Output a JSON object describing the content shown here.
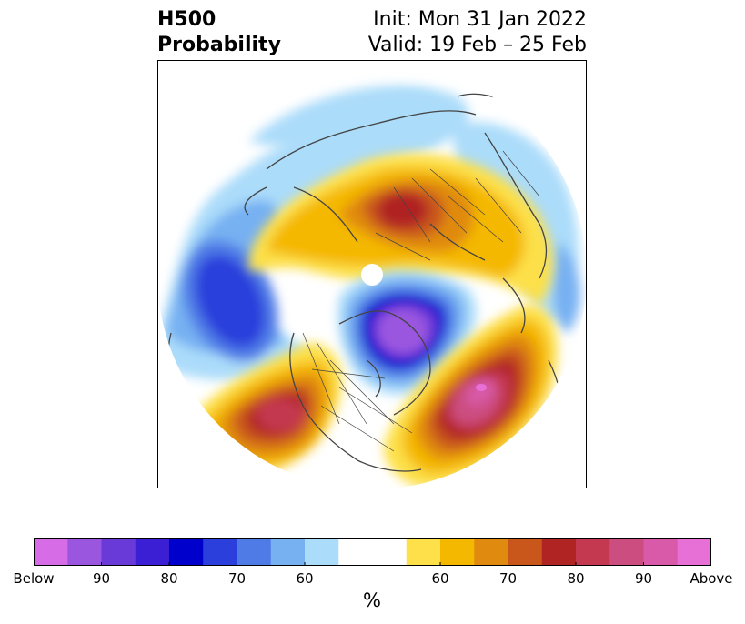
{
  "title": {
    "left_line1": "H500",
    "left_line2": "Probability",
    "right_line1": "Init: Mon 31 Jan 2022",
    "right_line2": "Valid: 19 Feb – 25 Feb"
  },
  "colorbar": {
    "unit": "%",
    "colors": [
      "#d66de6",
      "#9b56e0",
      "#6a3ad8",
      "#3a1fd4",
      "#0000cd",
      "#2a3fdc",
      "#4f7be6",
      "#77b1f2",
      "#abdcfa",
      "#ffffff",
      "#ffffff",
      "#fde04a",
      "#f4b800",
      "#e08a10",
      "#c9561a",
      "#b02424",
      "#c43850",
      "#cc4e80",
      "#d85aa8",
      "#e670d6"
    ],
    "ticks": [
      {
        "label": "Below",
        "index": 0
      },
      {
        "label": "90",
        "index": 2
      },
      {
        "label": "80",
        "index": 4
      },
      {
        "label": "70",
        "index": 6
      },
      {
        "label": "60",
        "index": 8
      },
      {
        "label": "60",
        "index": 12
      },
      {
        "label": "70",
        "index": 14
      },
      {
        "label": "80",
        "index": 16
      },
      {
        "label": "90",
        "index": 18
      },
      {
        "label": "Above",
        "index": 20
      }
    ]
  },
  "map": {
    "projection": "north-polar-stereographic",
    "field": "500 hPa height anomaly probability",
    "features": [
      {
        "name": "below-center-north-canada",
        "color": "#9b56e0"
      },
      {
        "name": "below-center-north-pacific",
        "color": "#2a3fdc"
      },
      {
        "name": "above-center-north-atlantic",
        "color": "#d85aa8"
      },
      {
        "name": "above-center-western-us",
        "color": "#b02424"
      },
      {
        "name": "above-center-siberia",
        "color": "#b02424"
      }
    ]
  }
}
